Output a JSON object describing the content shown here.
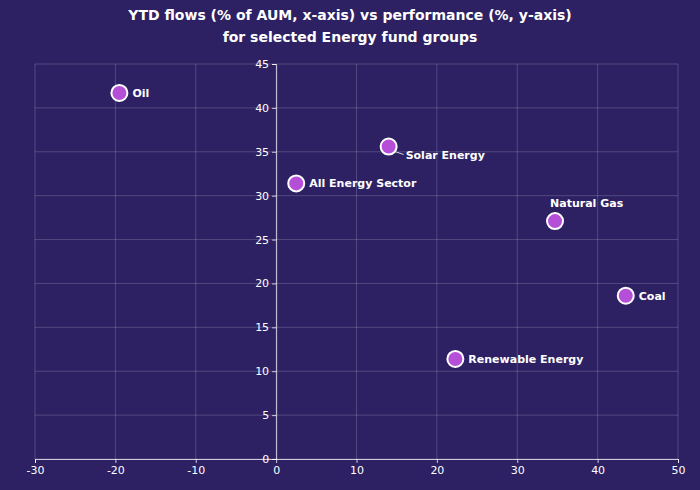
{
  "chart_data": {
    "type": "scatter",
    "title": [
      "YTD flows (% of AUM, x-axis) vs performance (%, y-axis)",
      "for selected Energy fund groups"
    ],
    "labels": [
      "Oil",
      "Solar Energy",
      "All Energy Sector",
      "Natural Gas",
      "Coal",
      "Renewable Energy"
    ],
    "x": [
      -19.5,
      14,
      2.5,
      34.7,
      43.5,
      22.3
    ],
    "values": [
      41.7,
      35.6,
      31.4,
      27.1,
      18.6,
      11.4
    ],
    "color": "#b64fd8",
    "xlim": [
      -30,
      50
    ],
    "xticks": [
      -30,
      -20,
      -10,
      0,
      10,
      20,
      30,
      40,
      50
    ],
    "ylim": [
      0,
      45
    ],
    "yticks": [
      0,
      5,
      10,
      15,
      20,
      25,
      30,
      35,
      40,
      45
    ],
    "grid": true
  }
}
